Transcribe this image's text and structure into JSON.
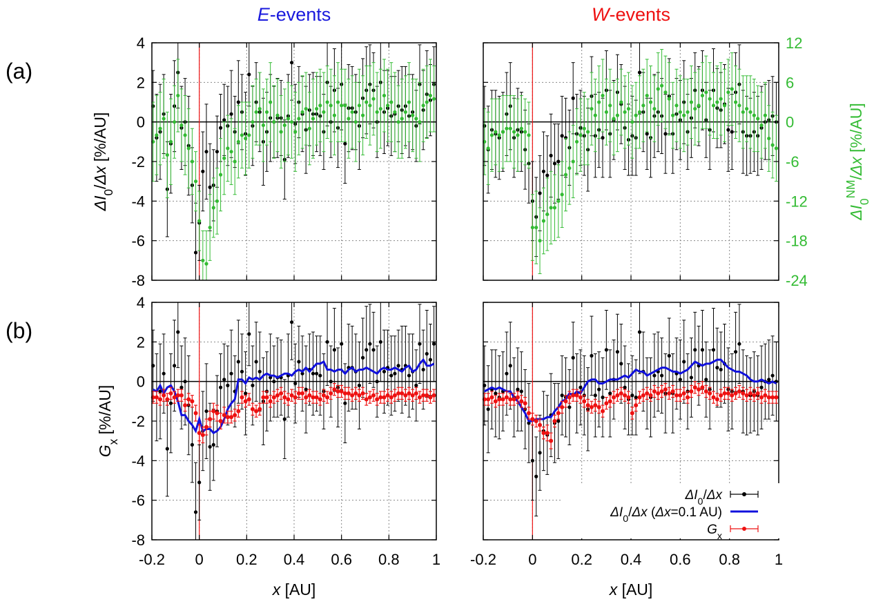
{
  "colors": {
    "black": "#000000",
    "green": "#33bb33",
    "blue": "#1010dd",
    "red": "#ee1111",
    "grid": "#888888"
  },
  "columns": [
    {
      "italic": "E",
      "rest": "-events",
      "color": "#1a1add"
    },
    {
      "italic": "W",
      "rest": "-events",
      "color": "#ee1111"
    }
  ],
  "row_labels": [
    "(a)",
    "(b)"
  ],
  "y_label_a": {
    "pre": "ΔI",
    "sub": "0",
    "post": "/Δx [%/AU]"
  },
  "y_label_b": {
    "pre": "G",
    "sub": "x",
    "post": " [%/AU]"
  },
  "y2_label": {
    "pre": "ΔI",
    "sub": "0",
    "sup": "NM",
    "post": "/Δx [%/AU]"
  },
  "x_label": {
    "pre": "x",
    "post": " [AU]"
  },
  "legend": [
    {
      "pre": "ΔI",
      "sub": "0",
      "post": "/Δx",
      "kind": "black"
    },
    {
      "pre": "ΔI",
      "sub": "0",
      "post": "/Δx (Δx=0.1 AU)",
      "kind": "blue"
    },
    {
      "pre": "G",
      "sub": "x",
      "post": "",
      "kind": "red"
    }
  ],
  "chart_data": {
    "type": "scatter",
    "panels": [
      "(a) E-events",
      "(a) W-events",
      "(b) E-events",
      "(b) W-events"
    ],
    "xlim": [
      -0.2,
      1
    ],
    "xticks": [
      "-0.2",
      "0",
      "0.2",
      "0.4",
      "0.6",
      "0.8",
      "1"
    ],
    "ylim": [
      -8,
      4
    ],
    "yticks": [
      "-8",
      "-6",
      "-4",
      "-2",
      "0",
      "2",
      "4"
    ],
    "y2lim": [
      -24,
      12
    ],
    "y2ticks": [
      "-24",
      "-18",
      "-12",
      "-6",
      "0",
      "6",
      "12"
    ],
    "x": [
      -0.195,
      -0.18,
      -0.165,
      -0.15,
      -0.135,
      -0.12,
      -0.105,
      -0.09,
      -0.075,
      -0.06,
      -0.045,
      -0.03,
      -0.015,
      0.0,
      0.015,
      0.03,
      0.045,
      0.06,
      0.075,
      0.09,
      0.105,
      0.12,
      0.135,
      0.15,
      0.165,
      0.18,
      0.195,
      0.21,
      0.225,
      0.24,
      0.255,
      0.27,
      0.285,
      0.3,
      0.315,
      0.33,
      0.345,
      0.36,
      0.375,
      0.39,
      0.405,
      0.42,
      0.435,
      0.45,
      0.465,
      0.48,
      0.495,
      0.51,
      0.525,
      0.54,
      0.555,
      0.57,
      0.585,
      0.6,
      0.615,
      0.63,
      0.645,
      0.66,
      0.675,
      0.69,
      0.705,
      0.72,
      0.735,
      0.75,
      0.765,
      0.78,
      0.795,
      0.81,
      0.825,
      0.84,
      0.855,
      0.87,
      0.885,
      0.9,
      0.915,
      0.93,
      0.945,
      0.96,
      0.975,
      0.99
    ],
    "E": {
      "dI": [
        0.8,
        -0.8,
        -0.5,
        0.4,
        -3.4,
        -1.1,
        0.8,
        2.5,
        -0.3,
        0.0,
        -1.2,
        -3.2,
        -6.6,
        -5.1,
        -2.5,
        -1.5,
        -3.3,
        -3.2,
        -1.5,
        -0.3,
        0.1,
        -0.2,
        0.4,
        -0.5,
        1.0,
        0.5,
        -0.6,
        2.4,
        -0.2,
        1.0,
        0.5,
        -1.0,
        -0.5,
        0.2,
        0.0,
        0.2,
        0.2,
        -1.9,
        0.3,
        3.0,
        -0.1,
        1.0,
        0.4,
        -0.4,
        0.6,
        0.4,
        0.4,
        0.3,
        -0.5,
        2.0,
        0.0,
        1.6,
        -0.3,
        1.9,
        -1.1,
        0.7,
        0.7,
        0.5,
        -0.2,
        1.2,
        1.6,
        1.9,
        1.6,
        0.0,
        2.0,
        0.5,
        0.7,
        0.3,
        0.4,
        0.8,
        0.6,
        0.8,
        0.3,
        0.5,
        -0.2,
        1.9,
        0.6,
        1.4,
        1.1,
        1.9
      ],
      "dI_err": [
        1.8,
        2.2,
        2.4,
        2.0,
        2.4,
        2.5,
        2.3,
        1.8,
        2.1,
        2.2,
        2.5,
        1.9,
        2.5,
        1.9,
        2.0,
        2.4,
        2.2,
        1.8,
        1.8,
        1.7,
        1.8,
        2.0,
        2.2,
        1.8,
        2.1,
        1.9,
        2.1,
        1.6,
        2.0,
        2.0,
        2.0,
        2.2,
        2.0,
        2.2,
        1.8,
        2.0,
        1.9,
        2.0,
        2.1,
        1.9,
        2.0,
        1.8,
        1.9,
        2.2,
        1.8,
        2.1,
        1.9,
        2.0,
        1.9,
        2.2,
        1.8,
        2.1,
        2.0,
        2.3,
        2.0,
        2.2,
        2.1,
        1.9,
        2.2,
        2.0,
        2.2,
        2.0,
        1.9,
        1.8,
        2.0,
        2.1,
        1.9,
        2.0,
        1.9,
        1.8,
        2.2,
        2.0,
        2.1,
        1.9,
        1.8,
        2.0,
        2.0,
        2.2,
        1.8,
        1.9
      ],
      "nm": [
        -3.0,
        -2.0,
        -1.0,
        0.5,
        -5.0,
        -3.0,
        0.0,
        4.0,
        -0.5,
        -2.0,
        -4.0,
        -6.0,
        -9.0,
        -15.0,
        -21.0,
        -21.5,
        -16.0,
        -13.0,
        -12.0,
        -8.0,
        -5.5,
        -4.0,
        -4.5,
        -6.0,
        -3.0,
        -2.0,
        -2.5,
        -2.0,
        0.0,
        1.5,
        2.0,
        -0.5,
        1.5,
        3.0,
        0.0,
        1.0,
        -1.5,
        -0.5,
        0.5,
        0.0,
        -1.5,
        0.5,
        1.5,
        2.0,
        -1.0,
        0.5,
        2.0,
        2.5,
        1.5,
        3.0,
        2.5,
        1.0,
        3.0,
        2.5,
        2.5,
        0.5,
        1.5,
        0.0,
        2.5,
        1.0,
        3.0,
        2.5,
        3.5,
        1.5,
        2.0,
        4.0,
        2.5,
        3.0,
        1.5,
        0.0,
        0.5,
        1.5,
        3.0,
        1.0,
        0.5,
        0.0,
        2.5,
        3.0,
        4.0,
        3.5
      ],
      "nm_err": [
        6.0,
        6.0,
        5.5,
        6.0,
        6.5,
        6.5,
        5.5,
        5.5,
        5.5,
        6.0,
        6.0,
        5.0,
        4.5,
        4.5,
        4.5,
        5.0,
        5.0,
        4.5,
        5.0,
        5.5,
        5.5,
        5.0,
        5.0,
        5.0,
        5.5,
        5.0,
        5.5,
        5.0,
        5.5,
        5.0,
        5.5,
        5.5,
        5.0,
        6.0,
        5.5,
        5.5,
        5.5,
        5.5,
        5.5,
        5.5,
        6.0,
        5.5,
        5.5,
        5.5,
        5.5,
        6.0,
        5.5,
        5.5,
        6.0,
        5.5,
        5.5,
        6.0,
        6.0,
        5.5,
        5.5,
        6.0,
        5.5,
        6.0,
        5.5,
        6.0,
        5.5,
        6.0,
        5.5,
        6.0,
        6.0,
        5.5,
        5.5,
        6.0,
        6.0,
        5.5,
        6.0,
        5.5,
        6.0,
        5.5,
        6.0,
        6.0,
        5.5,
        5.5,
        5.5,
        5.0
      ],
      "blue": [
        -0.4,
        -0.5,
        -0.2,
        -0.6,
        -0.3,
        -0.2,
        -0.5,
        -1.0,
        -1.7,
        -1.7,
        -2.0,
        -2.2,
        -2.5,
        -1.9,
        -2.5,
        -2.4,
        -2.4,
        -2.6,
        -2.5,
        -2.3,
        -1.9,
        -1.4,
        -1.1,
        -0.9,
        0.1,
        0.1,
        -0.1,
        0.2,
        0.1,
        0.2,
        0.1,
        0.3,
        0.4,
        0.3,
        0.3,
        0.2,
        0.3,
        0.4,
        0.4,
        0.3,
        0.5,
        0.6,
        0.5,
        0.7,
        0.5,
        0.7,
        0.9,
        0.9,
        1.0,
        0.6,
        0.6,
        0.5,
        0.6,
        0.6,
        0.4,
        0.6,
        0.7,
        0.5,
        0.6,
        0.6,
        0.7,
        0.6,
        0.5,
        0.4,
        0.6,
        0.7,
        0.6,
        0.6,
        0.7,
        0.6,
        0.5,
        0.7,
        0.8,
        0.5,
        0.6,
        0.9,
        1.1,
        0.8,
        0.8,
        0.9
      ],
      "gx": [
        -0.8,
        -0.8,
        -0.9,
        -0.7,
        -0.9,
        -0.6,
        -0.8,
        -0.7,
        -0.7,
        -1.2,
        -0.9,
        -1.0,
        -1.6,
        -2.6,
        -2.7,
        -2.3,
        -1.9,
        -1.5,
        -1.6,
        -2.0,
        -1.7,
        -1.8,
        -1.8,
        -1.7,
        -1.5,
        -0.8,
        -1.0,
        -0.9,
        -1.4,
        -1.5,
        -1.4,
        -0.8,
        -0.8,
        -1.0,
        -0.8,
        -0.7,
        -0.6,
        -0.8,
        -0.9,
        -0.7,
        -0.8,
        -0.6,
        -0.6,
        -0.8,
        -0.7,
        -0.8,
        -0.8,
        -0.9,
        -0.7,
        -0.8,
        -0.6,
        -0.4,
        -0.5,
        -0.5,
        -0.6,
        -0.6,
        -0.7,
        -0.6,
        -0.7,
        -0.6,
        -0.9,
        -0.8,
        -0.7,
        -0.9,
        -0.8,
        -0.8,
        -0.7,
        -0.8,
        -0.7,
        -0.6,
        -0.6,
        -0.7,
        -0.6,
        -0.7,
        -0.6,
        -0.8,
        -0.7,
        -0.7,
        -0.8,
        -0.7
      ],
      "gx_err": [
        0.3,
        0.3,
        0.3,
        0.3,
        0.3,
        0.3,
        0.3,
        0.3,
        0.3,
        0.3,
        0.3,
        0.3,
        0.4,
        0.4,
        0.4,
        0.4,
        0.4,
        0.4,
        0.4,
        0.4,
        0.4,
        0.3,
        0.3,
        0.3,
        0.3,
        0.3,
        0.3,
        0.3,
        0.3,
        0.3,
        0.3,
        0.3,
        0.3,
        0.3,
        0.3,
        0.3,
        0.3,
        0.3,
        0.3,
        0.3,
        0.3,
        0.3,
        0.3,
        0.3,
        0.3,
        0.3,
        0.3,
        0.3,
        0.3,
        0.3,
        0.3,
        0.3,
        0.3,
        0.3,
        0.3,
        0.3,
        0.3,
        0.3,
        0.3,
        0.3,
        0.3,
        0.3,
        0.3,
        0.3,
        0.3,
        0.3,
        0.3,
        0.3,
        0.3,
        0.3,
        0.3,
        0.3,
        0.3,
        0.3,
        0.3,
        0.3,
        0.3,
        0.3,
        0.3,
        0.3
      ]
    },
    "W": {
      "dI": [
        -0.2,
        -1.4,
        -0.4,
        -0.6,
        -0.8,
        -0.5,
        0.4,
        0.8,
        -0.8,
        -0.4,
        -0.5,
        -1.4,
        -2.1,
        -4.0,
        -4.8,
        -3.6,
        -2.5,
        -2.7,
        -1.7,
        -2.1,
        -2.0,
        -0.7,
        -0.8,
        -1.3,
        1.2,
        -0.6,
        -0.3,
        -0.7,
        -1.4,
        1.3,
        -0.7,
        -0.4,
        -0.8,
        1.6,
        -0.6,
        0.1,
        1.5,
        0.9,
        -0.3,
        -0.9,
        -0.7,
        -0.8,
        2.5,
        0.5,
        -0.6,
        -0.8,
        0.3,
        0.5,
        0.3,
        -0.6,
        1.3,
        -0.6,
        0.4,
        0.1,
        1.0,
        -0.5,
        0.2,
        1.6,
        0.8,
        1.6,
        0.1,
        -0.4,
        1.6,
        0.7,
        0.6,
        0.9,
        -0.4,
        -0.5,
        1.5,
        1.9,
        -0.5,
        -0.7,
        -0.7,
        -0.5,
        -0.7,
        -0.3,
        0.0,
        0.1,
        0.3,
        0.0
      ],
      "dI_err": [
        2.0,
        2.2,
        2.0,
        2.2,
        2.1,
        2.0,
        2.1,
        2.2,
        2.0,
        2.1,
        2.0,
        2.0,
        2.0,
        2.0,
        2.0,
        1.9,
        2.0,
        2.0,
        2.1,
        2.0,
        1.9,
        2.0,
        2.0,
        1.9,
        1.8,
        2.0,
        1.9,
        2.0,
        2.1,
        2.0,
        2.1,
        1.9,
        2.0,
        2.0,
        2.2,
        2.0,
        1.9,
        2.0,
        2.1,
        1.8,
        2.0,
        1.9,
        2.1,
        2.0,
        1.8,
        2.0,
        2.1,
        2.0,
        1.9,
        2.0,
        1.9,
        2.0,
        1.8,
        2.0,
        2.1,
        1.9,
        2.0,
        1.9,
        2.0,
        2.0,
        1.9,
        2.0,
        2.1,
        2.0,
        1.9,
        2.0,
        2.1,
        1.9,
        2.0,
        2.0,
        2.1,
        2.0,
        1.9,
        2.0,
        2.0,
        2.1,
        1.9,
        2.0,
        2.0,
        2.0
      ],
      "nm": [
        -3.0,
        -4.0,
        -2.0,
        -1.5,
        -2.0,
        -1.5,
        -1.0,
        -1.0,
        -1.5,
        -2.0,
        -1.0,
        -1.5,
        -2.0,
        -16.0,
        -16.0,
        -18.0,
        -15.0,
        -14.0,
        -13.0,
        -13.0,
        -12.0,
        -11.0,
        -8.0,
        -7.0,
        -6.0,
        -3.0,
        -2.0,
        -1.0,
        -1.5,
        2.0,
        1.0,
        3.0,
        4.0,
        1.5,
        2.5,
        0.5,
        1.0,
        3.0,
        1.5,
        2.0,
        0.0,
        1.0,
        1.5,
        2.5,
        4.0,
        3.0,
        2.0,
        5.0,
        5.5,
        4.5,
        3.5,
        1.0,
        2.5,
        1.5,
        1.0,
        1.5,
        3.0,
        2.0,
        2.5,
        4.0,
        4.5,
        3.5,
        2.5,
        3.0,
        3.5,
        2.5,
        4.5,
        5.0,
        3.0,
        2.5,
        1.5,
        2.0,
        1.5,
        1.0,
        0.5,
        -0.5,
        1.0,
        -2.5,
        -3.5,
        -4.0
      ],
      "nm_err": [
        5.0,
        5.5,
        5.5,
        5.0,
        5.5,
        5.5,
        5.0,
        5.0,
        5.5,
        5.5,
        5.0,
        5.0,
        5.0,
        5.0,
        5.5,
        5.0,
        5.0,
        5.5,
        5.5,
        5.0,
        5.5,
        5.0,
        5.5,
        5.5,
        5.5,
        5.0,
        5.5,
        5.5,
        5.0,
        5.5,
        5.5,
        5.5,
        5.5,
        5.0,
        5.5,
        5.5,
        5.5,
        5.0,
        5.5,
        5.5,
        5.5,
        5.0,
        5.5,
        5.5,
        5.5,
        5.5,
        5.0,
        5.5,
        5.5,
        5.5,
        5.5,
        5.0,
        5.5,
        5.5,
        5.5,
        5.0,
        5.5,
        5.5,
        5.5,
        5.0,
        5.5,
        5.5,
        5.0,
        5.5,
        5.5,
        5.5,
        5.0,
        5.5,
        5.5,
        5.5,
        5.5,
        5.0,
        5.5,
        5.5,
        5.0,
        5.0,
        5.0,
        5.0,
        5.0,
        5.0
      ],
      "blue": [
        -0.5,
        -0.4,
        -0.3,
        -0.4,
        -0.3,
        -0.4,
        -0.5,
        -0.5,
        -0.8,
        -1.0,
        -1.3,
        -1.6,
        -2.0,
        -2.0,
        -1.9,
        -1.9,
        -1.9,
        -1.8,
        -1.8,
        -1.5,
        -1.3,
        -1.0,
        -0.9,
        -0.6,
        -0.7,
        -0.5,
        -0.6,
        -0.3,
        0.0,
        0.1,
        0.1,
        -0.1,
        -0.1,
        0.0,
        0.1,
        0.1,
        0.1,
        0.2,
        0.3,
        0.2,
        0.4,
        0.6,
        0.5,
        0.5,
        0.3,
        0.4,
        0.5,
        0.6,
        0.7,
        0.7,
        0.6,
        0.5,
        0.5,
        0.4,
        0.5,
        0.6,
        0.8,
        1.0,
        0.9,
        0.8,
        0.9,
        0.9,
        1.0,
        1.1,
        1.1,
        0.9,
        0.7,
        0.6,
        0.5,
        0.5,
        0.4,
        0.3,
        0.1,
        0.0,
        0.0,
        0.1,
        0.0,
        -0.1,
        0.0,
        -0.1
      ],
      "gx": [
        -0.9,
        -0.9,
        -0.8,
        -1.0,
        -0.9,
        -0.9,
        -0.8,
        -0.9,
        -0.9,
        -0.8,
        -1.0,
        -1.1,
        -1.6,
        -1.9,
        -2.0,
        -2.2,
        -2.6,
        -2.6,
        -3.0,
        -2.0,
        -1.6,
        -1.3,
        -1.0,
        -0.8,
        -0.7,
        -0.7,
        -0.8,
        -1.0,
        -1.2,
        -1.3,
        -1.2,
        -1.3,
        -1.5,
        -1.1,
        -1.0,
        -0.8,
        -0.7,
        -0.6,
        -0.7,
        -0.8,
        -1.6,
        -1.2,
        -0.8,
        -0.7,
        -0.6,
        -0.7,
        -0.5,
        -0.6,
        -0.5,
        -0.4,
        -0.6,
        -0.5,
        -0.7,
        -0.7,
        -0.6,
        -0.8,
        -0.5,
        -0.3,
        -0.4,
        -0.3,
        -0.5,
        -0.6,
        -0.8,
        -0.9,
        -0.7,
        -0.6,
        -0.6,
        -0.7,
        -0.6,
        -0.5,
        -0.6,
        -0.7,
        -0.6,
        -0.7,
        -0.6,
        -0.8,
        -0.7,
        -0.8,
        -0.8,
        -0.8
      ],
      "gx_err": [
        0.3,
        0.3,
        0.3,
        0.3,
        0.3,
        0.3,
        0.3,
        0.3,
        0.3,
        0.3,
        0.3,
        0.3,
        0.3,
        0.3,
        0.3,
        0.3,
        0.3,
        0.4,
        0.4,
        0.3,
        0.3,
        0.3,
        0.3,
        0.3,
        0.3,
        0.3,
        0.3,
        0.3,
        0.3,
        0.3,
        0.3,
        0.3,
        0.3,
        0.3,
        0.3,
        0.3,
        0.3,
        0.3,
        0.3,
        0.3,
        0.3,
        0.3,
        0.3,
        0.3,
        0.3,
        0.3,
        0.3,
        0.3,
        0.3,
        0.3,
        0.3,
        0.3,
        0.3,
        0.3,
        0.3,
        0.3,
        0.3,
        0.3,
        0.3,
        0.3,
        0.3,
        0.3,
        0.3,
        0.3,
        0.3,
        0.3,
        0.3,
        0.3,
        0.3,
        0.3,
        0.3,
        0.3,
        0.3,
        0.3,
        0.3,
        0.3,
        0.3,
        0.3,
        0.3,
        0.3
      ]
    }
  }
}
